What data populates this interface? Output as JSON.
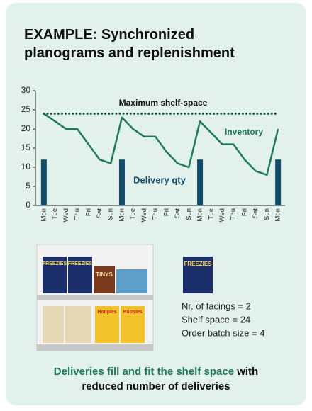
{
  "title": "EXAMPLE: Synchronized planograms and replenishment",
  "chart_data": {
    "type": "line",
    "categories": [
      "Mon",
      "Tue",
      "Wed",
      "Thu",
      "Fri",
      "Sat",
      "Sun",
      "Mon",
      "Tue",
      "Wed",
      "Thu",
      "Fri",
      "Sat",
      "Sun",
      "Mon",
      "Tue",
      "Wed",
      "Thu",
      "Fri",
      "Sat",
      "Sun",
      "Mon"
    ],
    "series": [
      {
        "name": "Inventory",
        "type": "line",
        "color": "#1d7a5c",
        "values": [
          24,
          22,
          20,
          20,
          16,
          12,
          11,
          23,
          20,
          18,
          18,
          14,
          11,
          10,
          22,
          19,
          16,
          16,
          12,
          9,
          8,
          20
        ]
      },
      {
        "name": "Delivery qty",
        "type": "bar",
        "color": "#114d6b",
        "values": [
          12,
          null,
          null,
          null,
          null,
          null,
          null,
          12,
          null,
          null,
          null,
          null,
          null,
          null,
          12,
          null,
          null,
          null,
          null,
          null,
          null,
          12
        ]
      }
    ],
    "reference_line": {
      "label": "Maximum shelf-space",
      "value": 24,
      "color": "#15543f"
    },
    "ylim": [
      0,
      30
    ],
    "yticks": [
      0,
      5,
      10,
      15,
      20,
      25,
      30
    ]
  },
  "shelf": {
    "products": [
      "FREEZIES",
      "FREEZIES",
      "TINYS",
      "Hoopies",
      "Hoopies"
    ]
  },
  "product": "FREEZIES",
  "facts": [
    "Nr. of facings = 2",
    "Shelf space = 24",
    "Order batch size = 4"
  ],
  "footer": {
    "highlight": "Deliveries fill and fit the shelf space",
    "rest": "with",
    "line2": "reduced number of deliveries"
  }
}
